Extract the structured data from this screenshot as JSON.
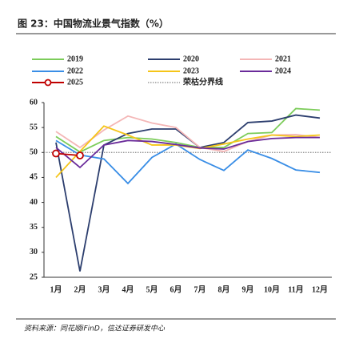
{
  "chart_data": {
    "type": "line",
    "title": "图 23：中国物流业景气指数（%）",
    "source": "资料来源：同花顺iFinD，信达证券研发中心",
    "categories": [
      "1月",
      "2月",
      "3月",
      "4月",
      "5月",
      "6月",
      "7月",
      "8月",
      "9月",
      "10月",
      "11月",
      "12月"
    ],
    "ylim": [
      25,
      60
    ],
    "yticks": [
      25,
      30,
      35,
      40,
      45,
      50,
      55,
      60
    ],
    "series": [
      {
        "name": "2019",
        "color": "#7ccc5a",
        "values": [
          53.2,
          50.1,
          52.4,
          53.0,
          52.7,
          52.0,
          51.0,
          51.0,
          53.8,
          54.0,
          58.8,
          58.5
        ]
      },
      {
        "name": "2020",
        "color": "#2c3e6e",
        "values": [
          52.0,
          26.2,
          51.5,
          53.8,
          54.7,
          54.7,
          51.0,
          52.0,
          56.0,
          56.3,
          57.5,
          56.9
        ]
      },
      {
        "name": "2021",
        "color": "#f4b6b6",
        "values": [
          54.2,
          51.0,
          54.5,
          57.3,
          55.9,
          55.0,
          51.0,
          50.2,
          52.2,
          53.5,
          53.6,
          53.0
        ]
      },
      {
        "name": "2022",
        "color": "#3a8ee6",
        "values": [
          52.4,
          49.5,
          48.7,
          43.8,
          49.0,
          51.7,
          48.6,
          46.4,
          50.5,
          48.8,
          46.5,
          46.0
        ]
      },
      {
        "name": "2023",
        "color": "#f5c518",
        "values": [
          45.0,
          50.2,
          55.3,
          53.5,
          51.5,
          51.5,
          50.8,
          51.7,
          52.7,
          53.5,
          53.2,
          53.5
        ]
      },
      {
        "name": "2024",
        "color": "#6a2b9a",
        "values": [
          51.0,
          47.0,
          51.5,
          52.4,
          52.2,
          51.6,
          50.9,
          50.7,
          52.2,
          52.8,
          53.0,
          53.0
        ]
      },
      {
        "name": "2025",
        "color": "#c00000",
        "marker": true,
        "values": [
          49.8,
          49.4,
          null,
          null,
          null,
          null,
          null,
          null,
          null,
          null,
          null,
          null
        ]
      }
    ],
    "threshold": {
      "name": "荣枯分界线",
      "value": 50,
      "color": "#888888"
    }
  }
}
